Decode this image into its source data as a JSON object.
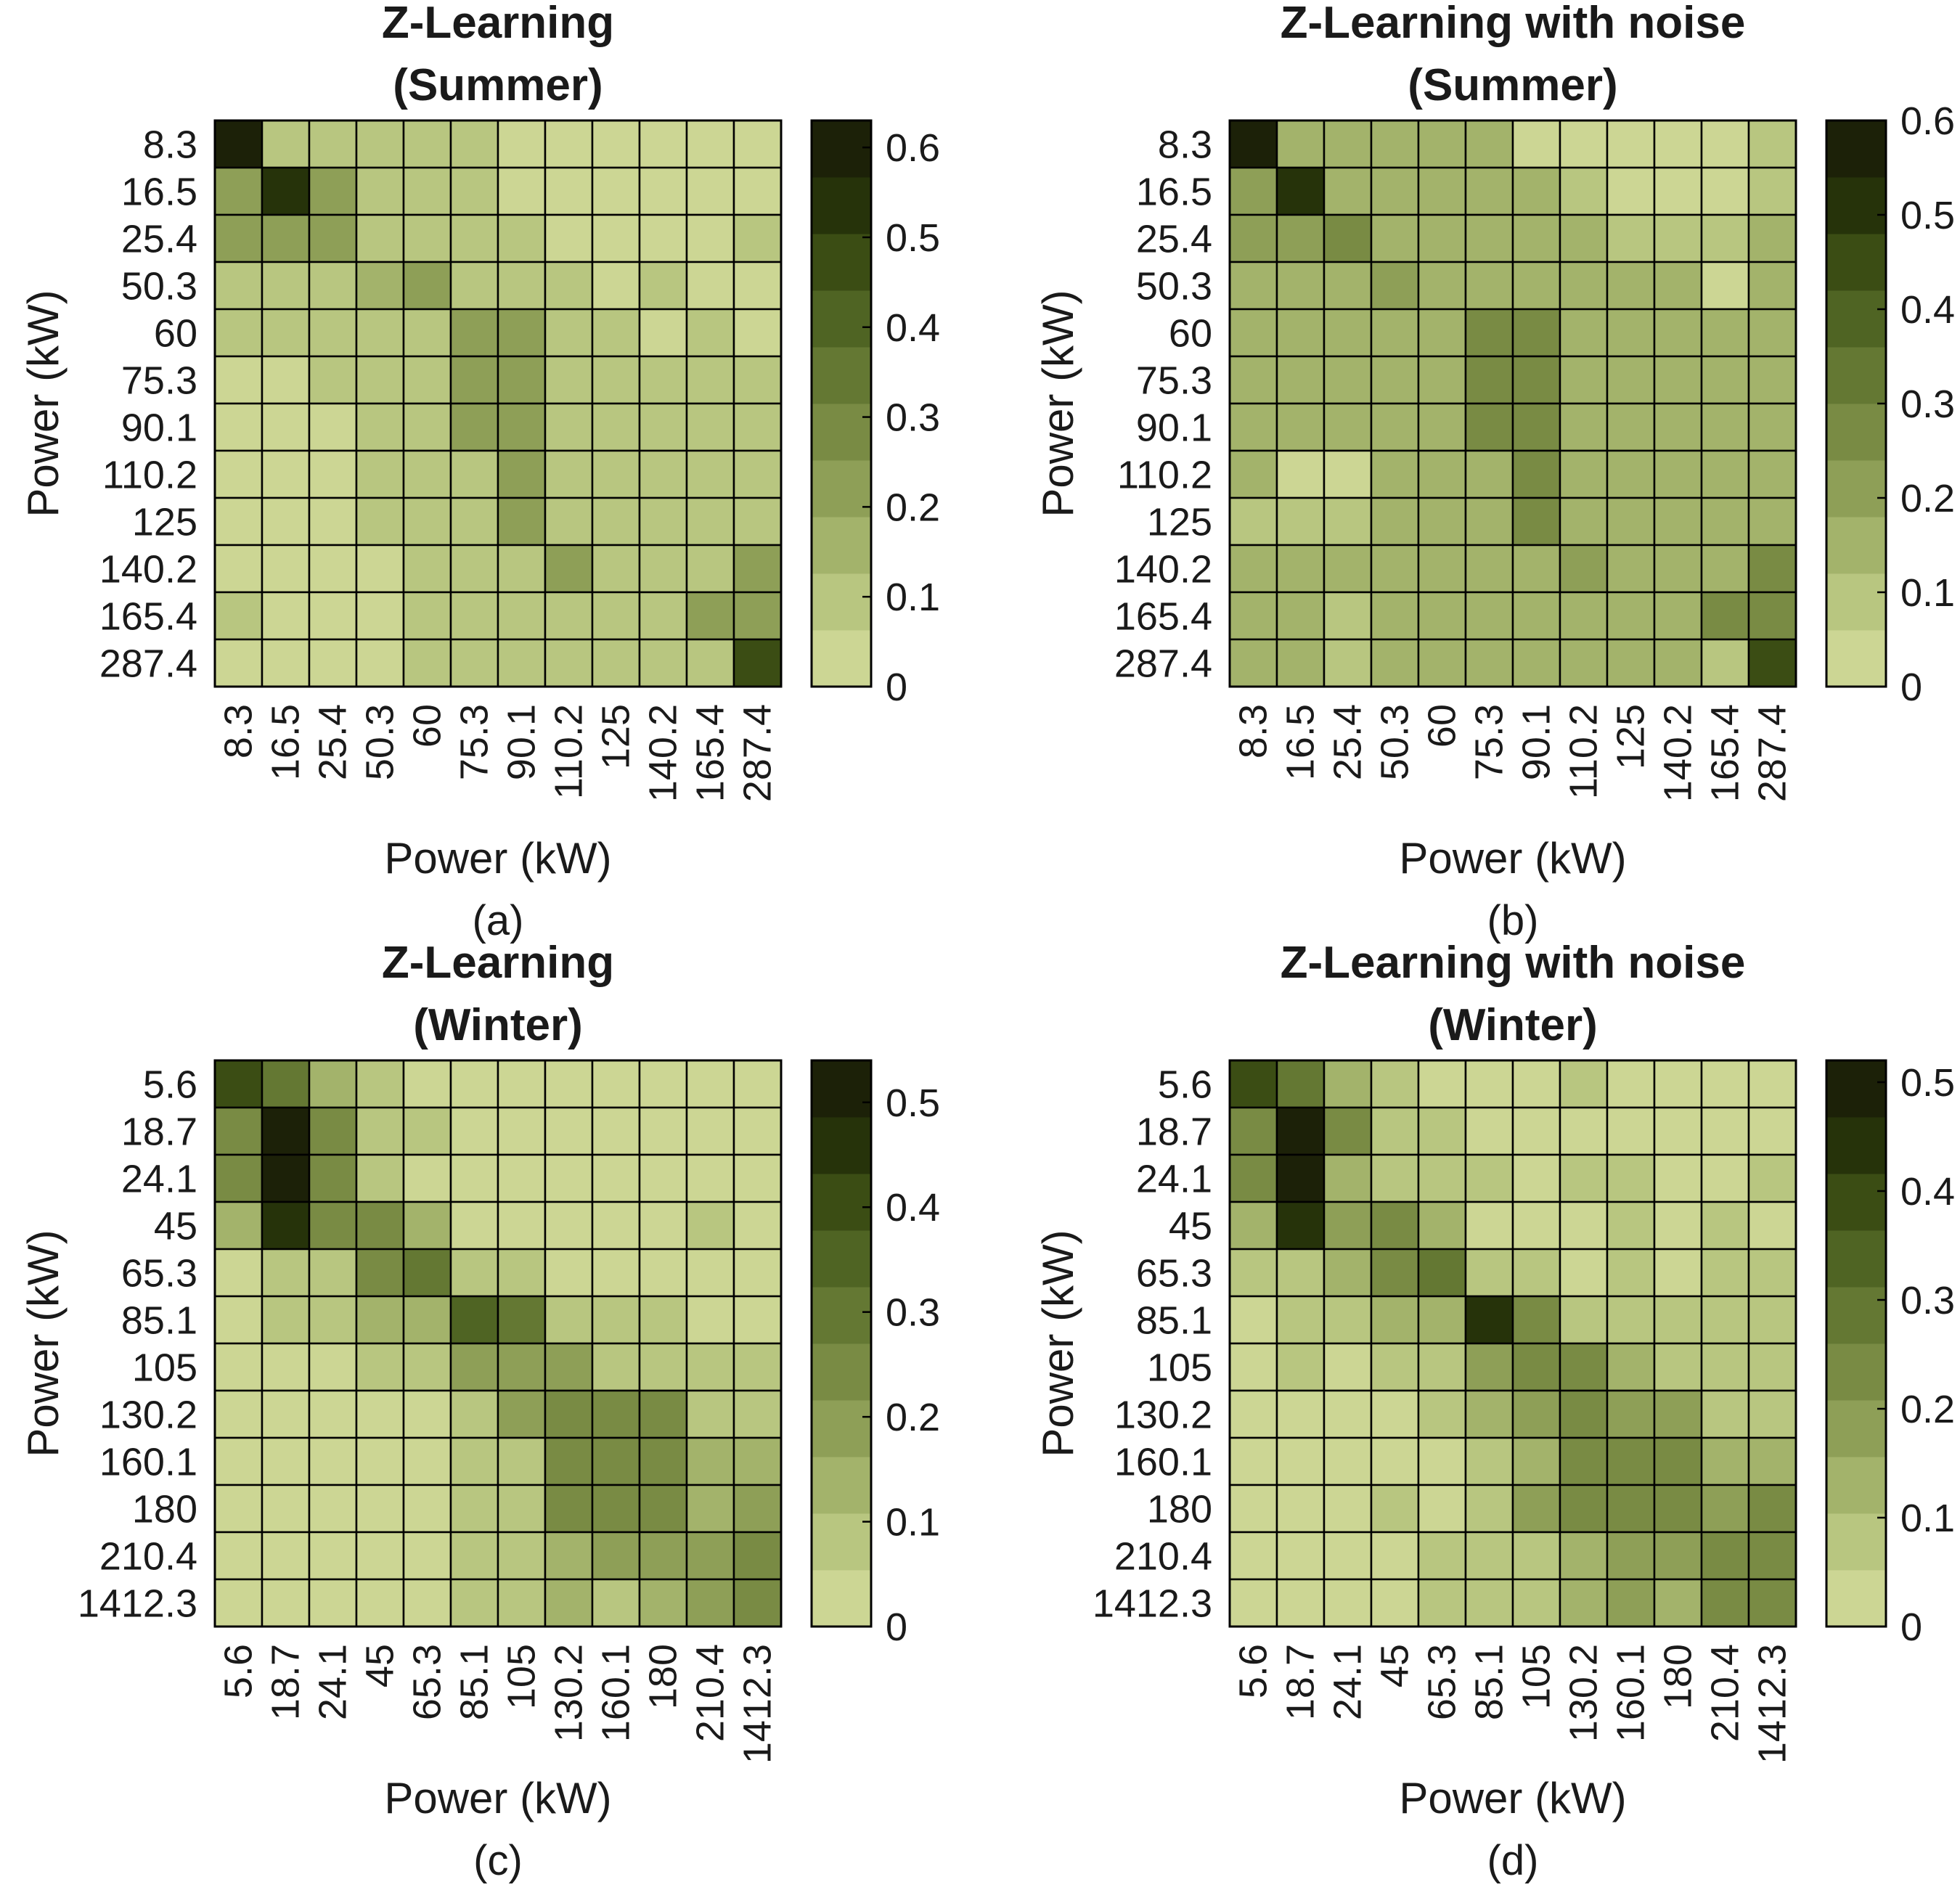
{
  "palette": [
    "#ccd694",
    "#b8c680",
    "#a3b36b",
    "#8e9f57",
    "#798b44",
    "#647833",
    "#4f6423",
    "#3b4d14",
    "#26330a",
    "#1c2108"
  ],
  "chart_data": [
    {
      "id": "a",
      "type": "heatmap",
      "title_lines": [
        "Z-Learning",
        "(Summer)"
      ],
      "caption": "(a)",
      "xlabel": "Power (kW)",
      "ylabel": "Power (kW)",
      "categories": [
        "8.3",
        "16.5",
        "25.4",
        "50.3",
        "60",
        "75.3",
        "90.1",
        "110.2",
        "125",
        "140.2",
        "165.4",
        "287.4"
      ],
      "colorbar": {
        "min": 0,
        "max": 0.63,
        "ticks": [
          "0",
          "0.1",
          "0.2",
          "0.3",
          "0.4",
          "0.5",
          "0.6"
        ],
        "tick_values": [
          0,
          0.1,
          0.2,
          0.3,
          0.4,
          0.5,
          0.6
        ]
      },
      "values": [
        [
          0.62,
          0.12,
          0.12,
          0.12,
          0.12,
          0.1,
          0.04,
          0.04,
          0.04,
          0.04,
          0.04,
          0.05
        ],
        [
          0.22,
          0.55,
          0.22,
          0.12,
          0.1,
          0.1,
          0.04,
          0.04,
          0.04,
          0.04,
          0.04,
          0.05
        ],
        [
          0.22,
          0.22,
          0.22,
          0.12,
          0.1,
          0.1,
          0.1,
          0.05,
          0.05,
          0.04,
          0.04,
          0.1
        ],
        [
          0.12,
          0.12,
          0.12,
          0.18,
          0.22,
          0.12,
          0.1,
          0.1,
          0.05,
          0.1,
          0.04,
          0.05
        ],
        [
          0.12,
          0.12,
          0.12,
          0.12,
          0.12,
          0.22,
          0.25,
          0.12,
          0.1,
          0.05,
          0.1,
          0.05
        ],
        [
          0.04,
          0.04,
          0.12,
          0.12,
          0.12,
          0.25,
          0.25,
          0.12,
          0.1,
          0.1,
          0.1,
          0.1
        ],
        [
          0.04,
          0.04,
          0.04,
          0.12,
          0.12,
          0.22,
          0.25,
          0.12,
          0.1,
          0.1,
          0.1,
          0.1
        ],
        [
          0.04,
          0.04,
          0.04,
          0.1,
          0.1,
          0.12,
          0.22,
          0.12,
          0.12,
          0.1,
          0.1,
          0.1
        ],
        [
          0.04,
          0.04,
          0.04,
          0.1,
          0.1,
          0.12,
          0.22,
          0.12,
          0.12,
          0.1,
          0.1,
          0.1
        ],
        [
          0.04,
          0.04,
          0.04,
          0.04,
          0.1,
          0.12,
          0.12,
          0.22,
          0.12,
          0.1,
          0.1,
          0.22
        ],
        [
          0.12,
          0.04,
          0.04,
          0.04,
          0.1,
          0.12,
          0.12,
          0.12,
          0.12,
          0.1,
          0.25,
          0.25
        ],
        [
          0.04,
          0.04,
          0.04,
          0.04,
          0.1,
          0.12,
          0.12,
          0.12,
          0.12,
          0.1,
          0.1,
          0.45
        ]
      ]
    },
    {
      "id": "b",
      "type": "heatmap",
      "title_lines": [
        "Z-Learning with noise",
        "(Summer)"
      ],
      "caption": "(b)",
      "xlabel": "Power (kW)",
      "ylabel": "Power (kW)",
      "categories": [
        "8.3",
        "16.5",
        "25.4",
        "50.3",
        "60",
        "75.3",
        "90.1",
        "110.2",
        "125",
        "140.2",
        "165.4",
        "287.4"
      ],
      "colorbar": {
        "min": 0,
        "max": 0.6,
        "ticks": [
          "0",
          "0.1",
          "0.2",
          "0.3",
          "0.4",
          "0.5",
          "0.6"
        ],
        "tick_values": [
          0,
          0.1,
          0.2,
          0.3,
          0.4,
          0.5,
          0.6
        ]
      },
      "values": [
        [
          0.58,
          0.15,
          0.12,
          0.12,
          0.12,
          0.12,
          0.05,
          0.05,
          0.05,
          0.05,
          0.05,
          0.06
        ],
        [
          0.22,
          0.52,
          0.12,
          0.12,
          0.12,
          0.12,
          0.12,
          0.06,
          0.05,
          0.05,
          0.05,
          0.06
        ],
        [
          0.22,
          0.22,
          0.25,
          0.12,
          0.12,
          0.12,
          0.12,
          0.12,
          0.1,
          0.06,
          0.1,
          0.12
        ],
        [
          0.12,
          0.12,
          0.12,
          0.22,
          0.12,
          0.12,
          0.12,
          0.12,
          0.12,
          0.12,
          0.05,
          0.12
        ],
        [
          0.12,
          0.12,
          0.12,
          0.12,
          0.12,
          0.25,
          0.28,
          0.12,
          0.12,
          0.12,
          0.12,
          0.12
        ],
        [
          0.12,
          0.12,
          0.12,
          0.12,
          0.12,
          0.25,
          0.28,
          0.12,
          0.12,
          0.12,
          0.12,
          0.12
        ],
        [
          0.12,
          0.12,
          0.12,
          0.12,
          0.12,
          0.25,
          0.25,
          0.12,
          0.12,
          0.12,
          0.12,
          0.12
        ],
        [
          0.12,
          0.05,
          0.05,
          0.12,
          0.12,
          0.12,
          0.25,
          0.12,
          0.12,
          0.12,
          0.12,
          0.12
        ],
        [
          0.1,
          0.06,
          0.1,
          0.12,
          0.12,
          0.12,
          0.25,
          0.12,
          0.12,
          0.12,
          0.12,
          0.12
        ],
        [
          0.12,
          0.12,
          0.12,
          0.12,
          0.12,
          0.12,
          0.12,
          0.22,
          0.12,
          0.12,
          0.12,
          0.25
        ],
        [
          0.12,
          0.12,
          0.06,
          0.12,
          0.12,
          0.12,
          0.12,
          0.12,
          0.12,
          0.12,
          0.25,
          0.25
        ],
        [
          0.12,
          0.12,
          0.06,
          0.12,
          0.12,
          0.12,
          0.12,
          0.12,
          0.12,
          0.12,
          0.1,
          0.45
        ]
      ]
    },
    {
      "id": "c",
      "type": "heatmap",
      "title_lines": [
        "Z-Learning",
        "(Winter)"
      ],
      "caption": "(c)",
      "xlabel": "Power (kW)",
      "ylabel": "Power (kW)",
      "categories": [
        "5.6",
        "18.7",
        "24.1",
        "45",
        "65.3",
        "85.1",
        "105",
        "130.2",
        "160.1",
        "180",
        "210.4",
        "1412.3"
      ],
      "colorbar": {
        "min": 0,
        "max": 0.54,
        "ticks": [
          "0",
          "0.1",
          "0.2",
          "0.3",
          "0.4",
          "0.5"
        ],
        "tick_values": [
          0,
          0.1,
          0.2,
          0.3,
          0.4,
          0.5
        ]
      },
      "values": [
        [
          0.42,
          0.3,
          0.12,
          0.1,
          0.05,
          0.05,
          0.04,
          0.04,
          0.04,
          0.04,
          0.04,
          0.04
        ],
        [
          0.22,
          0.52,
          0.22,
          0.1,
          0.1,
          0.04,
          0.04,
          0.04,
          0.04,
          0.04,
          0.04,
          0.04
        ],
        [
          0.22,
          0.52,
          0.22,
          0.1,
          0.05,
          0.04,
          0.04,
          0.04,
          0.04,
          0.04,
          0.04,
          0.04
        ],
        [
          0.12,
          0.45,
          0.22,
          0.22,
          0.12,
          0.05,
          0.04,
          0.04,
          0.04,
          0.04,
          0.1,
          0.04
        ],
        [
          0.04,
          0.1,
          0.1,
          0.25,
          0.32,
          0.1,
          0.1,
          0.04,
          0.04,
          0.04,
          0.04,
          0.04
        ],
        [
          0.04,
          0.1,
          0.1,
          0.12,
          0.12,
          0.35,
          0.28,
          0.1,
          0.1,
          0.1,
          0.04,
          0.04
        ],
        [
          0.04,
          0.04,
          0.04,
          0.1,
          0.1,
          0.2,
          0.2,
          0.2,
          0.1,
          0.1,
          0.1,
          0.1
        ],
        [
          0.04,
          0.04,
          0.04,
          0.04,
          0.04,
          0.1,
          0.2,
          0.22,
          0.22,
          0.22,
          0.1,
          0.1
        ],
        [
          0.04,
          0.04,
          0.04,
          0.04,
          0.04,
          0.1,
          0.1,
          0.22,
          0.25,
          0.22,
          0.12,
          0.12
        ],
        [
          0.04,
          0.04,
          0.04,
          0.04,
          0.04,
          0.1,
          0.1,
          0.22,
          0.22,
          0.22,
          0.12,
          0.2
        ],
        [
          0.04,
          0.04,
          0.04,
          0.04,
          0.04,
          0.1,
          0.1,
          0.12,
          0.2,
          0.2,
          0.2,
          0.22
        ],
        [
          0.04,
          0.04,
          0.04,
          0.04,
          0.04,
          0.1,
          0.1,
          0.12,
          0.1,
          0.12,
          0.2,
          0.22
        ]
      ]
    },
    {
      "id": "d",
      "type": "heatmap",
      "title_lines": [
        "Z-Learning with noise",
        "(Winter)"
      ],
      "caption": "(d)",
      "xlabel": "Power (kW)",
      "ylabel": "Power (kW)",
      "categories": [
        "5.6",
        "18.7",
        "24.1",
        "45",
        "65.3",
        "85.1",
        "105",
        "130.2",
        "160.1",
        "180",
        "210.4",
        "1412.3"
      ],
      "colorbar": {
        "min": 0,
        "max": 0.52,
        "ticks": [
          "0",
          "0.1",
          "0.2",
          "0.3",
          "0.4",
          "0.5"
        ],
        "tick_values": [
          0,
          0.1,
          0.2,
          0.3,
          0.4,
          0.5
        ]
      },
      "values": [
        [
          0.4,
          0.3,
          0.12,
          0.1,
          0.05,
          0.05,
          0.04,
          0.1,
          0.04,
          0.04,
          0.04,
          0.04
        ],
        [
          0.22,
          0.5,
          0.22,
          0.1,
          0.1,
          0.04,
          0.04,
          0.04,
          0.04,
          0.04,
          0.04,
          0.04
        ],
        [
          0.22,
          0.5,
          0.12,
          0.1,
          0.1,
          0.1,
          0.04,
          0.1,
          0.1,
          0.04,
          0.04,
          0.1
        ],
        [
          0.12,
          0.42,
          0.2,
          0.22,
          0.12,
          0.05,
          0.04,
          0.04,
          0.1,
          0.04,
          0.1,
          0.04
        ],
        [
          0.1,
          0.1,
          0.12,
          0.25,
          0.3,
          0.1,
          0.1,
          0.04,
          0.1,
          0.04,
          0.1,
          0.1
        ],
        [
          0.04,
          0.1,
          0.1,
          0.12,
          0.12,
          0.45,
          0.22,
          0.1,
          0.1,
          0.1,
          0.1,
          0.1
        ],
        [
          0.04,
          0.1,
          0.04,
          0.1,
          0.1,
          0.2,
          0.22,
          0.22,
          0.12,
          0.1,
          0.1,
          0.1
        ],
        [
          0.04,
          0.04,
          0.04,
          0.04,
          0.1,
          0.12,
          0.2,
          0.22,
          0.2,
          0.2,
          0.1,
          0.1
        ],
        [
          0.04,
          0.04,
          0.04,
          0.04,
          0.04,
          0.1,
          0.12,
          0.22,
          0.25,
          0.22,
          0.12,
          0.12
        ],
        [
          0.04,
          0.04,
          0.04,
          0.1,
          0.04,
          0.1,
          0.2,
          0.22,
          0.25,
          0.22,
          0.2,
          0.22
        ],
        [
          0.04,
          0.04,
          0.04,
          0.04,
          0.1,
          0.1,
          0.1,
          0.12,
          0.2,
          0.2,
          0.22,
          0.25
        ],
        [
          0.04,
          0.04,
          0.04,
          0.04,
          0.1,
          0.1,
          0.1,
          0.12,
          0.2,
          0.12,
          0.22,
          0.25
        ]
      ]
    }
  ]
}
